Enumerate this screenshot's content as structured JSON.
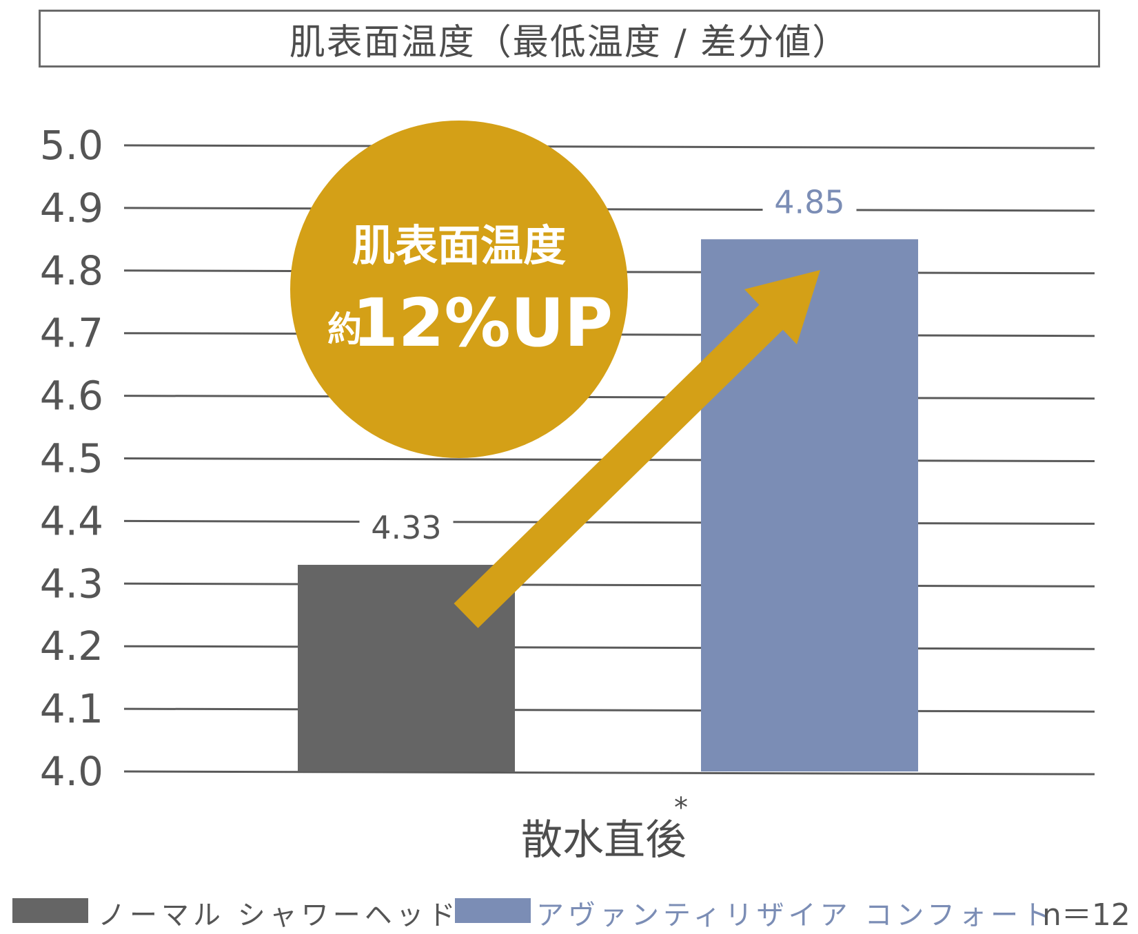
{
  "chart_data": {
    "type": "bar",
    "title": "肌表面温度（最低温度 / 差分値）",
    "categories": [
      "散水直後"
    ],
    "category_note": "*",
    "ylim": [
      4.0,
      5.0
    ],
    "yticks": [
      "5.0",
      "4.9",
      "4.8",
      "4.7",
      "4.6",
      "4.5",
      "4.4",
      "4.3",
      "4.2",
      "4.1",
      "4.0"
    ],
    "grid": true,
    "series": [
      {
        "name": "ノーマル シャワーヘッド",
        "values": [
          4.33
        ],
        "label": "4.33",
        "color": "#656565",
        "label_color": "#555555"
      },
      {
        "name": "アヴァンティリザイア コンフォート",
        "values": [
          4.85
        ],
        "label": "4.85",
        "color": "#7b8db5",
        "label_color": "#7b8db5"
      }
    ],
    "annotation": {
      "line1": "肌表面温度",
      "line2_prefix": "約",
      "line2_value": "12%UP",
      "color": "#d4a017"
    },
    "sample_size": "n＝12",
    "legend_position": "bottom"
  }
}
